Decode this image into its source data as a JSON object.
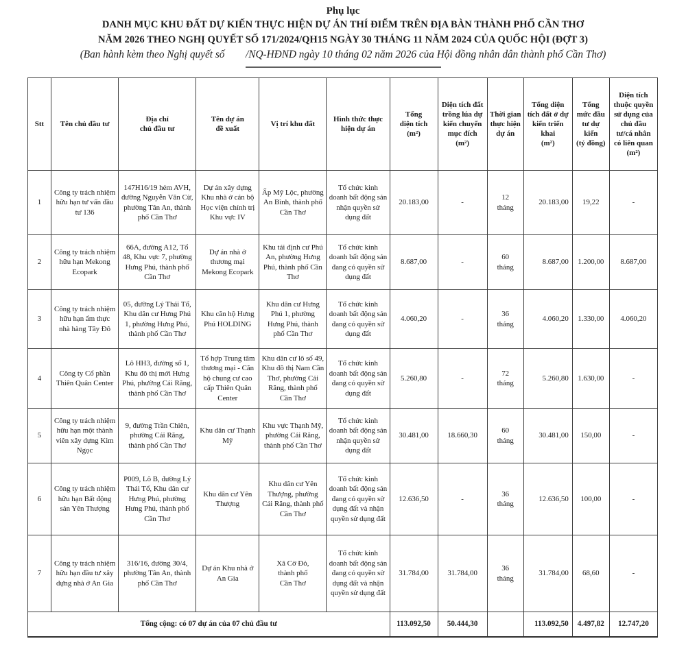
{
  "page": {
    "appendix_label": "Phụ lục",
    "title_line1": "DANH MỤC KHU ĐẤT DỰ KIẾN THỰC HIỆN DỰ ÁN THÍ ĐIỂM TRÊN ĐỊA BÀN THÀNH PHỐ CẦN THƠ",
    "title_line2": "NĂM 2026 THEO NGHỊ QUYẾT SỐ 171/2024/QH15 NGÀY 30 THÁNG 11 NĂM 2024 CỦA QUỐC HỘI (ĐỢT 3)",
    "subtitle": "(Ban hành kèm theo Nghị quyết số        /NQ-HĐND ngày 10 tháng 02 năm 2026 của Hội đồng nhân dân thành phố Cần Thơ)"
  },
  "table": {
    "columns": [
      {
        "key": "stt",
        "label": "Stt"
      },
      {
        "key": "ten_chu_dau_tu",
        "label": "Tên chủ đầu tư"
      },
      {
        "key": "dia_chi",
        "label": "Địa chỉ\nchủ đầu tư"
      },
      {
        "key": "ten_du_an",
        "label": "Tên dự án\nđề xuất"
      },
      {
        "key": "vi_tri",
        "label": "Vị trí khu đất"
      },
      {
        "key": "hinh_thuc",
        "label": "Hình thức thực hiện dự án"
      },
      {
        "key": "tong_dien_tich",
        "label": "Tổng\ndiện tích",
        "unit": "(m²)"
      },
      {
        "key": "dien_tich_lua",
        "label": "Diện tích đất trồng lúa dự kiến chuyển mục đích",
        "unit": "(m²)"
      },
      {
        "key": "thoi_gian",
        "label": "Thời gian thực hiện dự án"
      },
      {
        "key": "dat_o",
        "label": "Tổng diện tích đất ở dự kiến triển khai",
        "unit": "(m²)"
      },
      {
        "key": "muc_dau_tu",
        "label": "Tổng mức đầu tư dự kiến",
        "unit": "(tỷ đồng)"
      },
      {
        "key": "quyen_su_dung",
        "label": "Diện tích thuộc quyền sử dụng của chủ đầu tư/cá nhân có liên quan",
        "unit": "(m²)"
      }
    ],
    "rows": [
      [
        "1",
        "Công ty trách nhiệm hữu hạn tư vấn đầu tư 136",
        "147H16/19 hẻm AVH, đường Nguyễn Văn Cừ, phường Tân An, thành phố Cần Thơ",
        "Dự án xây dựng Khu nhà ở cán bộ Học viện chính trị Khu vực IV",
        "Ấp Mỹ Lộc, phường\nAn Bình, thành phố Cần Thơ",
        "Tổ chức kinh doanh bất động sản nhận quyền sử dụng đất",
        "20.183,00",
        "-",
        "12\ntháng",
        "20.183,00",
        "19,22",
        "-"
      ],
      [
        "2",
        "Công ty trách nhiệm hữu hạn Mekong Ecopark",
        "66A, đường A12, Tổ 48, Khu vực 7, phường Hưng Phú, thành phố Cần Thơ",
        "Dự án nhà ở thương mại Mekong Ecopark",
        "Khu tái định cư Phú An, phường Hưng Phú, thành phố Cần Thơ",
        "Tổ chức kinh doanh bất động sản đang có quyền sử dụng đất",
        "8.687,00",
        "-",
        "60\ntháng",
        "8.687,00",
        "1.200,00",
        "8.687,00"
      ],
      [
        "3",
        "Công ty trách nhiệm hữu hạn ẩm thực nhà hàng Tây Đô",
        "05, đường Lý Thái Tổ, Khu dân cư Hưng Phú 1, phường Hưng Phú, thành phố Cần Thơ",
        "Khu căn hộ Hưng Phú HOLDING",
        "Khu dân cư Hưng Phú 1, phường Hưng Phú, thành phố Cần Thơ",
        "Tổ chức kinh doanh bất động sản đang có quyền sử dụng đất",
        "4.060,20",
        "-",
        "36\ntháng",
        "4.060,20",
        "1.330,00",
        "4.060,20"
      ],
      [
        "4",
        "Công ty Cổ phần Thiên Quân Center",
        "Lô HH3, đường số 1, Khu đô thị mới Hưng Phú, phường Cái Răng, thành phố Cần Thơ",
        "Tổ hợp Trung tâm thương mại - Căn hộ chung cư cao cấp Thiên Quân Center",
        "Khu dân cư lô số 49, Khu đô thị Nam Cần Thơ, phường Cái Răng, thành phố Cần Thơ",
        "Tổ chức kinh doanh bất động sản đang có quyền sử dụng đất",
        "5.260,80",
        "-",
        "72\ntháng",
        "5.260,80",
        "1.630,00",
        "-"
      ],
      [
        "5",
        "Công ty trách nhiệm hữu hạn một thành viên xây dựng Kim Ngọc",
        "9, đường Trần Chiên, phường Cái Răng, thành phố Cần Thơ",
        "Khu dân cư Thạnh Mỹ",
        "Khu vực Thạnh Mỹ, phường Cái Răng, thành phố Cần Thơ",
        "Tổ chức kinh doanh bất động sản nhận quyền sử dụng đất",
        "30.481,00",
        "18.660,30",
        "60\ntháng",
        "30.481,00",
        "150,00",
        "-"
      ],
      [
        "6",
        "Công ty trách nhiệm hữu hạn Bất động sản Yên Thượng",
        "P009, Lô B, đường Lý Thái Tổ, Khu dân cư Hưng Phú, phường Hưng Phú, thành phố Cần Thơ",
        "Khu dân cư Yên Thượng",
        "Khu dân cư Yên Thượng, phường Cái Răng, thành phố Cần Thơ",
        "Tổ chức kinh doanh bất động sản đang có quyền sử dụng đất và nhận quyền sử dụng đất",
        "12.636,50",
        "-",
        "36\ntháng",
        "12.636,50",
        "100,00",
        "-"
      ],
      [
        "7",
        "Công ty trách nhiệm hữu hạn đầu tư xây dựng nhà ở An Gia",
        "316/16, đường 30/4, phường Tân An, thành phố Cần Thơ",
        "Dự án Khu nhà ở An Gia",
        "Xã Cờ Đỏ,\nthành phố\nCần Thơ",
        "Tổ chức kinh doanh bất động sản đang có quyền sử dụng đất và nhận quyền sử dụng đất",
        "31.784,00",
        "31.784,00",
        "36\ntháng",
        "31.784,00",
        "68,60",
        "-"
      ]
    ],
    "total_row": {
      "label": "Tổng cộng: có 07 dự án của 07 chủ đầu tư",
      "values": [
        "113.092,50",
        "50.444,30",
        "",
        "113.092,50",
        "4.497,82",
        "12.747,20"
      ]
    }
  }
}
